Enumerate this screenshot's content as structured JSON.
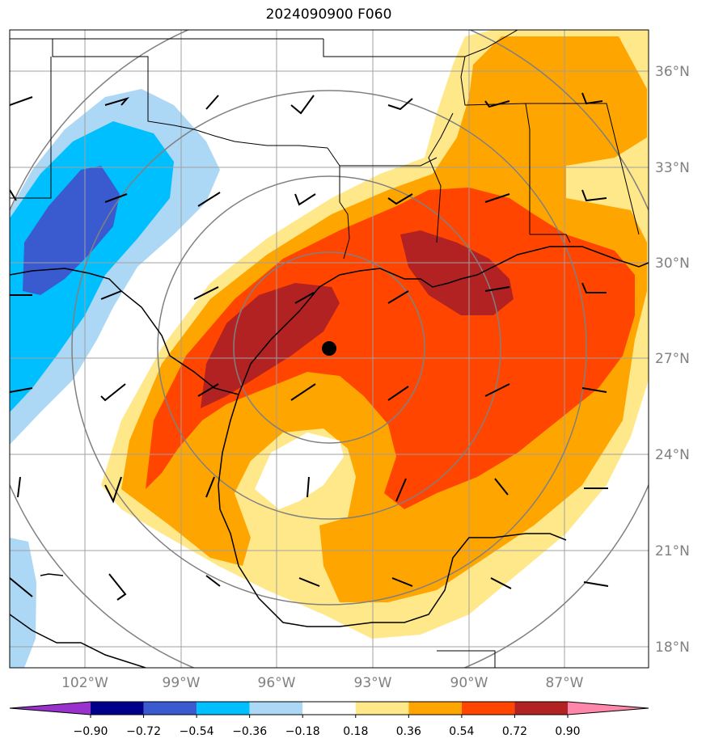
{
  "title": "2024090900 F060",
  "map": {
    "center_marker": "storm-center-dot",
    "lat_labels": [
      "36°N",
      "33°N",
      "30°N",
      "27°N",
      "24°N",
      "21°N",
      "18°N"
    ],
    "lon_labels": [
      "102°W",
      "99°W",
      "96°W",
      "93°W",
      "90°W",
      "87°W"
    ]
  },
  "colorbar": {
    "labels": [
      "−0.90",
      "−0.72",
      "−0.54",
      "−0.36",
      "−0.18",
      "0.18",
      "0.36",
      "0.54",
      "0.72",
      "0.90"
    ],
    "colors": [
      "#9932cc",
      "#00008b",
      "#3a5bd0",
      "#00bfff",
      "#add8f5",
      "#ffffff",
      "#ffe88a",
      "#ffa500",
      "#ff4500",
      "#b22222",
      "#ff88aa"
    ]
  },
  "colors": {
    "white": "#ffffff",
    "light_yellow": "#ffe88a",
    "orange": "#ffa500",
    "orange_red": "#ff4500",
    "dark_red": "#b22222",
    "light_blue": "#add8f5",
    "sky_blue": "#00bfff",
    "royal_blue": "#3a5bd0",
    "grid": "#a0a0a0",
    "range_rings": "#808080"
  }
}
